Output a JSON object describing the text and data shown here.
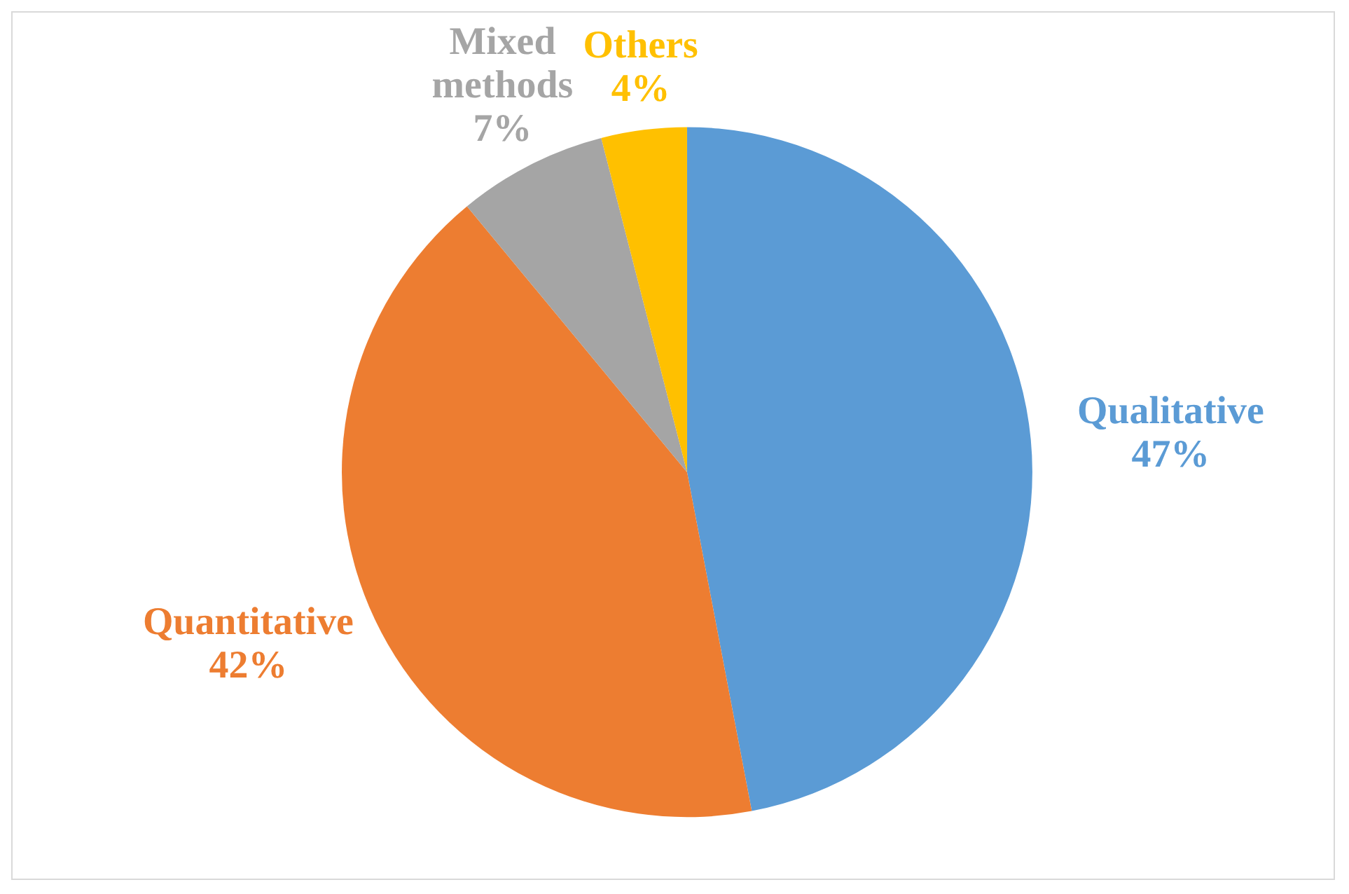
{
  "chart_data": {
    "type": "pie",
    "categories": [
      "Qualitative",
      "Quantitative",
      "Mixed methods",
      "Others"
    ],
    "values": [
      47,
      42,
      7,
      4
    ],
    "value_labels": [
      "47%",
      "42%",
      "7%",
      "4%"
    ],
    "colors": [
      "#5b9bd5",
      "#ed7d31",
      "#a5a5a5",
      "#ffc000"
    ],
    "legend": false
  }
}
